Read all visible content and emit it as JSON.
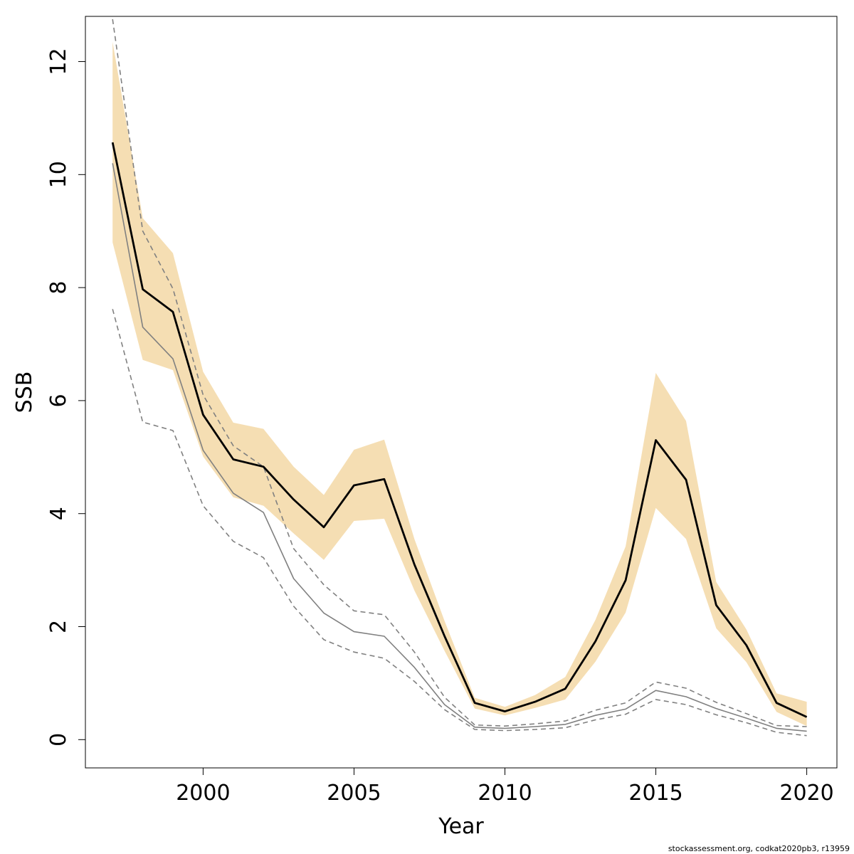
{
  "chart_data": {
    "type": "line",
    "title": "",
    "xlabel": "Year",
    "ylabel": "SSB",
    "xlim": [
      1996.1,
      2021.0
    ],
    "ylim": [
      -0.5,
      12.8
    ],
    "x_ticks": [
      2000,
      2005,
      2010,
      2015,
      2020
    ],
    "y_ticks": [
      0,
      2,
      4,
      6,
      8,
      10,
      12
    ],
    "grid": false,
    "legend": "none",
    "years": [
      1997,
      1998,
      1999,
      2000,
      2001,
      2002,
      2003,
      2004,
      2005,
      2006,
      2007,
      2008,
      2009,
      2010,
      2011,
      2012,
      2013,
      2014,
      2015,
      2016,
      2017,
      2018,
      2019,
      2020
    ],
    "series": [
      {
        "role": "estimate",
        "style": "solid-black-thick",
        "color": "#000000",
        "values": [
          10.57,
          7.97,
          7.57,
          5.75,
          4.96,
          4.83,
          4.25,
          3.76,
          4.5,
          4.61,
          3.1,
          1.83,
          0.65,
          0.5,
          0.67,
          0.9,
          1.74,
          2.82,
          5.3,
          4.6,
          2.38,
          1.67,
          0.65,
          0.4
        ]
      },
      {
        "role": "confidence-band",
        "style": "filled-band",
        "color": "#F5DEB3",
        "lower": [
          8.8,
          6.72,
          6.54,
          5.01,
          4.29,
          4.14,
          3.65,
          3.18,
          3.87,
          3.91,
          2.64,
          1.57,
          0.55,
          0.43,
          0.56,
          0.71,
          1.38,
          2.25,
          4.1,
          3.55,
          1.97,
          1.37,
          0.49,
          0.24
        ],
        "upper": [
          12.35,
          9.23,
          8.61,
          6.51,
          5.61,
          5.5,
          4.83,
          4.33,
          5.13,
          5.31,
          3.55,
          2.1,
          0.74,
          0.58,
          0.79,
          1.11,
          2.12,
          3.42,
          6.49,
          5.64,
          2.79,
          1.95,
          0.82,
          0.67
        ]
      },
      {
        "role": "comparison-estimate",
        "style": "solid-gray-thin",
        "color": "#808080",
        "values": [
          10.2,
          7.3,
          6.74,
          5.12,
          4.36,
          4.02,
          2.85,
          2.24,
          1.91,
          1.83,
          1.28,
          0.62,
          0.22,
          0.2,
          0.23,
          0.27,
          0.43,
          0.54,
          0.87,
          0.76,
          0.55,
          0.38,
          0.2,
          0.15
        ]
      },
      {
        "role": "comparison-upper",
        "style": "dashed-gray",
        "color": "#808080",
        "values": [
          12.75,
          9.0,
          7.98,
          6.1,
          5.2,
          4.83,
          3.38,
          2.74,
          2.28,
          2.21,
          1.55,
          0.75,
          0.26,
          0.24,
          0.28,
          0.33,
          0.52,
          0.65,
          1.02,
          0.91,
          0.66,
          0.46,
          0.25,
          0.23
        ]
      },
      {
        "role": "comparison-lower",
        "style": "dashed-gray",
        "color": "#808080",
        "values": [
          7.62,
          5.62,
          5.47,
          4.14,
          3.51,
          3.22,
          2.36,
          1.77,
          1.55,
          1.44,
          1.03,
          0.53,
          0.18,
          0.16,
          0.18,
          0.21,
          0.35,
          0.45,
          0.71,
          0.62,
          0.44,
          0.3,
          0.13,
          0.07
        ]
      }
    ]
  },
  "footer_note": "stockassessment.org, codkat2020pb3, r13959"
}
